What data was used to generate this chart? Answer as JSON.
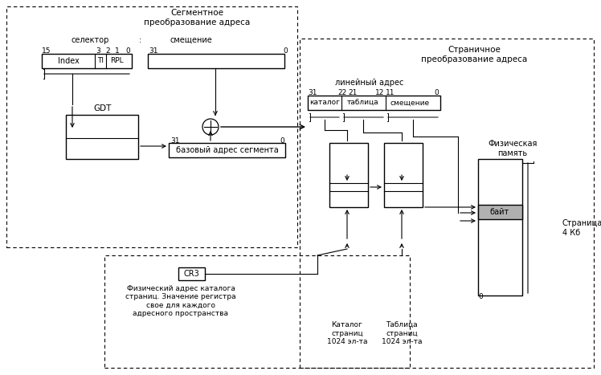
{
  "title_seg": "Сегментное\nпреобразование адреса",
  "title_page": "Страничное\nпреобразование адреса",
  "label_selector": "селектор",
  "label_colon": ":",
  "label_offset": "смещение",
  "label_linear": "линейный адрес",
  "label_gdt": "GDT",
  "label_base": "базовый адрес сегмента",
  "label_catalog_field": "каталог",
  "label_table_field": "таблица",
  "label_offset_field": "смещение",
  "label_phys_mem": "Физическая\nпамять",
  "label_byte": "байт",
  "label_page": "Страница\n4 Кб",
  "label_cr3": "CR3",
  "label_cr3_desc": "Физический адрес каталога\nстраниц. Значение регистра\nсвое для каждого\nадресного пространства",
  "label_catalog_tbl": "Каталог\nстраниц\n1024 эл-та",
  "label_table_tbl": "Таблица\nстраниц\n1024 эл-та",
  "label_index": "Index",
  "label_ti": "TI",
  "label_rpl": "RPL",
  "num_15": "15",
  "num_3": "3",
  "num_2": "2",
  "num_1": "1",
  "num_0_sel": "0",
  "num_31_off": "31",
  "num_0_off": "0",
  "num_31_lin": "31",
  "num_22": "22",
  "num_21": "21",
  "num_12": "12",
  "num_11": "11",
  "num_0_lin": "0",
  "num_31_base": "31",
  "num_0_base": "0",
  "num_0_phys": "0",
  "bg_color": "#ffffff",
  "gray_fill": "#b0b0b0"
}
